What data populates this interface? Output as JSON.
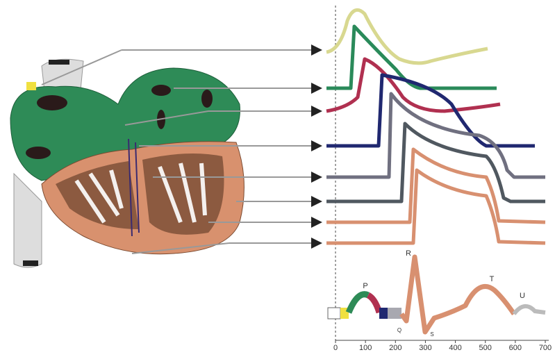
{
  "axis": {
    "ticks": [
      0,
      100,
      200,
      300,
      400,
      500,
      600,
      700
    ]
  },
  "ecg": {
    "labels": [
      "P",
      "Q",
      "R",
      "S",
      "T",
      "U"
    ]
  }
}
